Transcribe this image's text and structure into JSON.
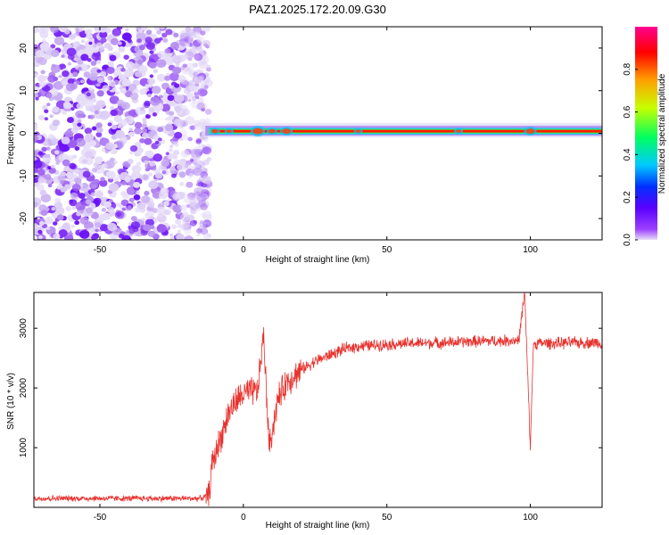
{
  "title": "PAZ1.2025.172.20.09.G30",
  "chart_data": [
    {
      "type": "heatmap",
      "xlabel": "Height of straight line (km)",
      "ylabel": "Frequency (Hz)",
      "xlim": [
        -73,
        125
      ],
      "ylim": [
        -25,
        25
      ],
      "xticks": [
        -50,
        0,
        50,
        100
      ],
      "yticks": [
        -20,
        -10,
        0,
        10,
        20
      ],
      "colorbar": {
        "label": "Normalized spectral amplitude",
        "range": [
          0,
          1
        ],
        "ticks": [
          "0.0",
          "0.2",
          "0.4",
          "0.6",
          "0.8"
        ],
        "colormap": [
          "#e8ddf7",
          "#7a00ff",
          "#0030ff",
          "#00c8ff",
          "#00ff60",
          "#c8ff00",
          "#ffa000",
          "#ff0000",
          "#ff0090"
        ]
      },
      "regions": {
        "noise": {
          "x_range": [
            -73,
            -15
          ],
          "amplitude": [
            0,
            0.15
          ]
        },
        "signal_line": {
          "x_range": [
            -12,
            125
          ],
          "frequency_hz": 0.5,
          "peak_amplitude": 0.95
        }
      }
    },
    {
      "type": "line",
      "xlabel": "Height of straight line (km)",
      "ylabel": "SNR (10 * v/v)",
      "xlim": [
        -73,
        125
      ],
      "ylim": [
        0,
        3600
      ],
      "xticks": [
        -50,
        0,
        50,
        100
      ],
      "yticks": [
        1000,
        2000,
        3000
      ],
      "color": "#e8322e",
      "envelope": {
        "x": [
          -73,
          -40,
          -15,
          -12,
          -11,
          -9,
          -7,
          -5,
          -2,
          0,
          5,
          7,
          9,
          12,
          15,
          20,
          25,
          30,
          35,
          40,
          50,
          60,
          70,
          80,
          90,
          96,
          98,
          100,
          101,
          102,
          105,
          110,
          115,
          120,
          125
        ],
        "y": [
          150,
          150,
          150,
          200,
          700,
          1000,
          1300,
          1600,
          1800,
          1900,
          1950,
          2900,
          1000,
          1800,
          2100,
          2300,
          2450,
          2550,
          2650,
          2700,
          2730,
          2750,
          2760,
          2780,
          2790,
          2800,
          3600,
          1000,
          2700,
          2750,
          2750,
          2750,
          2760,
          2760,
          2760
        ]
      },
      "noise_amplitude": 120
    }
  ]
}
